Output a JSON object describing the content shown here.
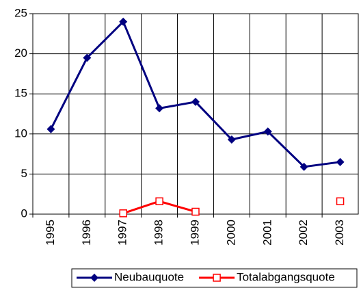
{
  "chart_data": {
    "type": "line",
    "categories": [
      "1995",
      "1996",
      "1997",
      "1998",
      "1999",
      "2000",
      "2001",
      "2002",
      "2003"
    ],
    "series": [
      {
        "name": "Neubauquote",
        "color": "#000080",
        "marker": "diamond",
        "values": [
          10.6,
          19.5,
          24.0,
          13.2,
          14.0,
          9.3,
          10.3,
          5.9,
          6.5
        ]
      },
      {
        "name": "Totalabgangsquote",
        "color": "#ff0000",
        "marker": "square",
        "values": [
          null,
          null,
          0.1,
          1.6,
          0.3,
          null,
          null,
          null,
          1.6
        ]
      }
    ],
    "ylim": [
      0,
      25
    ],
    "yticks": [
      0,
      5,
      10,
      15,
      20,
      25
    ],
    "grid": true
  }
}
